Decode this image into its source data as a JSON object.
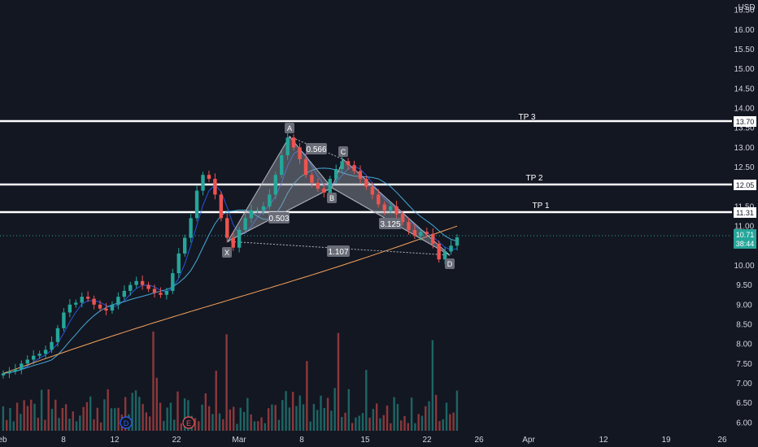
{
  "currency": "USD",
  "last_price": {
    "value": "10.71",
    "countdown": "38:44"
  },
  "earnings_badges": [
    "D",
    "E"
  ],
  "colors": {
    "background": "#131722",
    "up": "#26a69a",
    "down": "#ef5350",
    "ma_fast": "#2962ff",
    "ma_mid": "#4fc3f7",
    "ma_slow": "#f7a35c",
    "pattern_fill": "#9598a1",
    "level_line": "#ffffff",
    "axis_text": "#d1d4dc"
  },
  "chart_data": {
    "type": "candlestick",
    "x_ticks": [
      "eb",
      "8",
      "12",
      "22",
      "Mar",
      "8",
      "15",
      "22",
      "26",
      "Apr",
      "12",
      "19",
      "26"
    ],
    "y_ticks": [
      "16.50",
      "16.00",
      "15.50",
      "15.00",
      "14.50",
      "14.00",
      "13.50",
      "13.00",
      "12.50",
      "12.00",
      "11.50",
      "11.00",
      "10.50",
      "10.00",
      "9.50",
      "9.00",
      "8.50",
      "8.00",
      "7.50",
      "7.00",
      "6.50",
      "6.00"
    ],
    "ylim": [
      5.75,
      16.75
    ],
    "levels": [
      {
        "name": "TP 3",
        "price": "13.70",
        "value": 13.7
      },
      {
        "name": "TP 2",
        "price": "12.05",
        "value": 12.05
      },
      {
        "name": "TP 1",
        "price": "11.31",
        "value": 11.31
      }
    ],
    "pattern_points": [
      {
        "label": "X",
        "value": 10.45
      },
      {
        "label": "A",
        "value": 13.25
      },
      {
        "label": "B",
        "value": 11.85
      },
      {
        "label": "C",
        "value": 12.65
      },
      {
        "label": "D",
        "value": 10.15
      }
    ],
    "ratios": [
      "0.566",
      "0.503",
      "3.125",
      "1.107"
    ],
    "price_series": [
      7.25,
      7.3,
      7.35,
      7.5,
      7.6,
      7.7,
      7.75,
      7.85,
      8.05,
      8.4,
      8.8,
      9.0,
      9.05,
      9.2,
      9.15,
      9.0,
      8.9,
      8.85,
      9.0,
      9.2,
      9.35,
      9.5,
      9.6,
      9.5,
      9.4,
      9.3,
      9.25,
      9.35,
      9.8,
      10.3,
      10.7,
      11.2,
      11.9,
      12.3,
      12.2,
      11.8,
      11.2,
      10.7,
      10.45,
      10.9,
      11.2,
      11.4,
      11.4,
      11.5,
      11.8,
      12.3,
      12.8,
      13.25,
      13.0,
      12.7,
      12.3,
      12.1,
      11.95,
      11.85,
      12.2,
      12.45,
      12.65,
      12.55,
      12.4,
      12.2,
      12.0,
      11.8,
      11.55,
      11.4,
      11.5,
      11.3,
      11.1,
      10.9,
      10.75,
      10.85,
      10.8,
      10.55,
      10.15,
      10.35,
      10.5,
      10.71
    ],
    "volume_note": "relative volume bars shown at bottom"
  }
}
